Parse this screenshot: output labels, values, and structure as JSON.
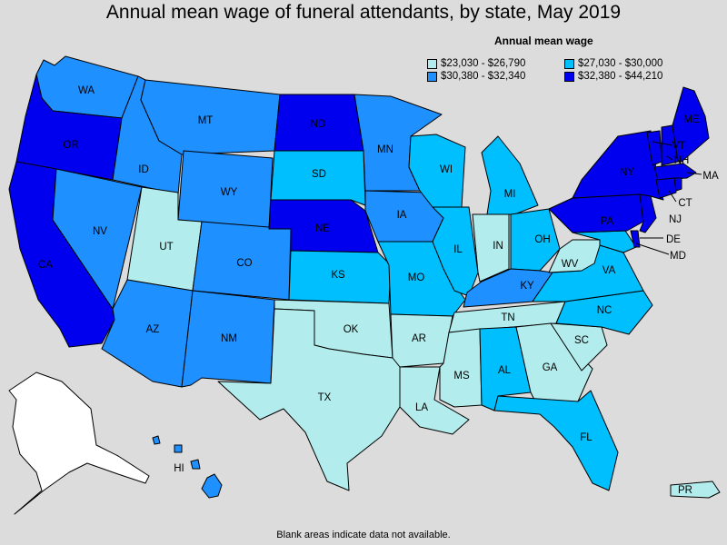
{
  "title": "Annual mean wage of funeral attendants, by state, May 2019",
  "legend": {
    "title": "Annual mean wage",
    "items": [
      {
        "key": "c1",
        "label": "$23,030 - $26,790",
        "color": "#b3ecec"
      },
      {
        "key": "c2",
        "label": "$27,030 - $30,000",
        "color": "#00bfff"
      },
      {
        "key": "c3",
        "label": "$30,380 - $32,340",
        "color": "#1e90ff"
      },
      {
        "key": "c4",
        "label": "$32,380 - $44,210",
        "color": "#0000ee"
      }
    ]
  },
  "no_data_color": "#ffffff",
  "footnote": "Blank areas indicate data not available.",
  "states": {
    "WA": "c3",
    "OR": "c4",
    "CA": "c4",
    "ID": "c3",
    "NV": "c3",
    "MT": "c3",
    "WY": "c3",
    "UT": "c1",
    "AZ": "c3",
    "CO": "c3",
    "NM": "c3",
    "ND": "c4",
    "SD": "c2",
    "NE": "c4",
    "KS": "c2",
    "OK": "c1",
    "TX": "c1",
    "MN": "c3",
    "IA": "c3",
    "MO": "c2",
    "AR": "c1",
    "LA": "c1",
    "WI": "c2",
    "IL": "c2",
    "MI": "c2",
    "IN": "c1",
    "OH": "c2",
    "KY": "c3",
    "TN": "c1",
    "MS": "c1",
    "AL": "c2",
    "GA": "c1",
    "FL": "c2",
    "SC": "c1",
    "NC": "c2",
    "VA": "c2",
    "WV": "c1",
    "MD": "c2",
    "DE": "c4",
    "NJ": "c4",
    "PA": "c4",
    "NY": "c4",
    "CT": "c4",
    "RI": "c4",
    "MA": "c4",
    "VT": "c4",
    "NH": "c4",
    "ME": "c4",
    "HI": "c3",
    "PR": "c1",
    "AK": "none"
  }
}
